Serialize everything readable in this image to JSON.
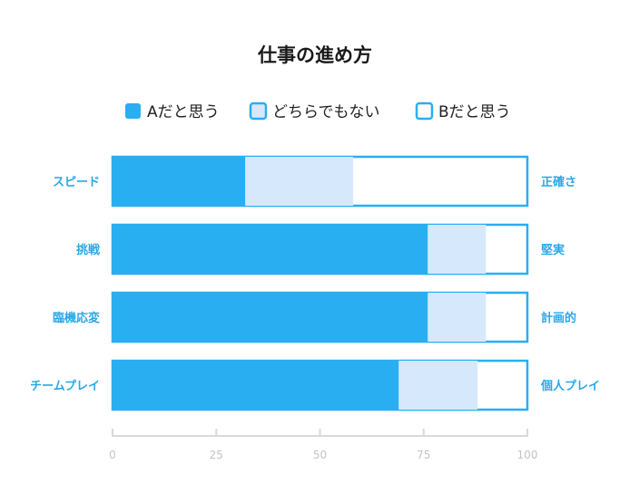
{
  "chart_data": {
    "type": "bar",
    "orientation": "horizontal",
    "stacked": true,
    "title": "仕事の進め方",
    "categories": [
      "スピード",
      "挑戦",
      "臨機応変",
      "チームプレイ"
    ],
    "right_labels": [
      "正確さ",
      "堅実",
      "計画的",
      "個人プレイ"
    ],
    "series": [
      {
        "name": "Aだと思う",
        "values": [
          32,
          76,
          76,
          69
        ]
      },
      {
        "name": "どちらでもない",
        "values": [
          26,
          14,
          14,
          19
        ]
      },
      {
        "name": "Bだと思う",
        "values": [
          42,
          10,
          10,
          12
        ]
      }
    ],
    "xlim": [
      0,
      100
    ],
    "xticks": [
      0,
      25,
      50,
      75,
      100
    ],
    "legend_position": "top",
    "grid": false,
    "colors": {
      "a": "#29aef2",
      "neutral": "#d6e8fc",
      "b_fill": "#ffffff",
      "b_border": "#29aef2",
      "axis": "#d9d9d9"
    }
  }
}
